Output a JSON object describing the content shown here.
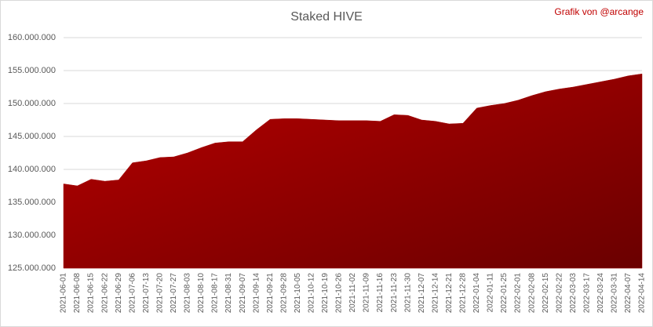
{
  "chart_data": {
    "type": "area",
    "title": "Staked HIVE",
    "annotation": "Grafik von @arcange",
    "color": "#a00000",
    "grid": true,
    "categories": [
      "2021-06-01",
      "2021-06-08",
      "2021-06-15",
      "2021-06-22",
      "2021-06-29",
      "2021-07-06",
      "2021-07-13",
      "2021-07-20",
      "2021-07-27",
      "2021-08-03",
      "2021-08-10",
      "2021-08-17",
      "2021-08-31",
      "2021-09-07",
      "2021-09-14",
      "2021-09-21",
      "2021-09-28",
      "2021-10-05",
      "2021-10-12",
      "2021-10-19",
      "2021-10-26",
      "2021-11-02",
      "2021-11-09",
      "2021-11-16",
      "2021-11-23",
      "2021-11-30",
      "2021-12-07",
      "2021-12-14",
      "2021-12-21",
      "2021-12-28",
      "2022-01-04",
      "2022-01-11",
      "2022-01-25",
      "2022-02-01",
      "2022-02-08",
      "2022-02-15",
      "2022-02-22",
      "2022-03-03",
      "2022-03-17",
      "2022-03-24",
      "2022-03-31",
      "2022-04-07",
      "2022-04-14"
    ],
    "values": [
      137800000,
      137500000,
      138500000,
      138200000,
      138400000,
      141000000,
      141300000,
      141800000,
      141900000,
      142500000,
      143300000,
      144000000,
      144200000,
      144200000,
      146000000,
      147600000,
      147700000,
      147700000,
      147600000,
      147500000,
      147400000,
      147400000,
      147400000,
      147300000,
      148300000,
      148200000,
      147500000,
      147300000,
      146900000,
      147000000,
      149300000,
      149700000,
      150000000,
      150500000,
      151200000,
      151800000,
      152200000,
      152500000,
      152900000,
      153300000,
      153700000,
      154200000,
      154500000
    ],
    "ylim": [
      125000000,
      160000000
    ],
    "yticks": [
      {
        "value": 125000000,
        "label": "125.000.000"
      },
      {
        "value": 130000000,
        "label": "130.000.000"
      },
      {
        "value": 135000000,
        "label": "135.000.000"
      },
      {
        "value": 140000000,
        "label": "140.000.000"
      },
      {
        "value": 145000000,
        "label": "145.000.000"
      },
      {
        "value": 150000000,
        "label": "150.000.000"
      },
      {
        "value": 155000000,
        "label": "155.000.000"
      },
      {
        "value": 160000000,
        "label": "160.000.000"
      }
    ]
  }
}
